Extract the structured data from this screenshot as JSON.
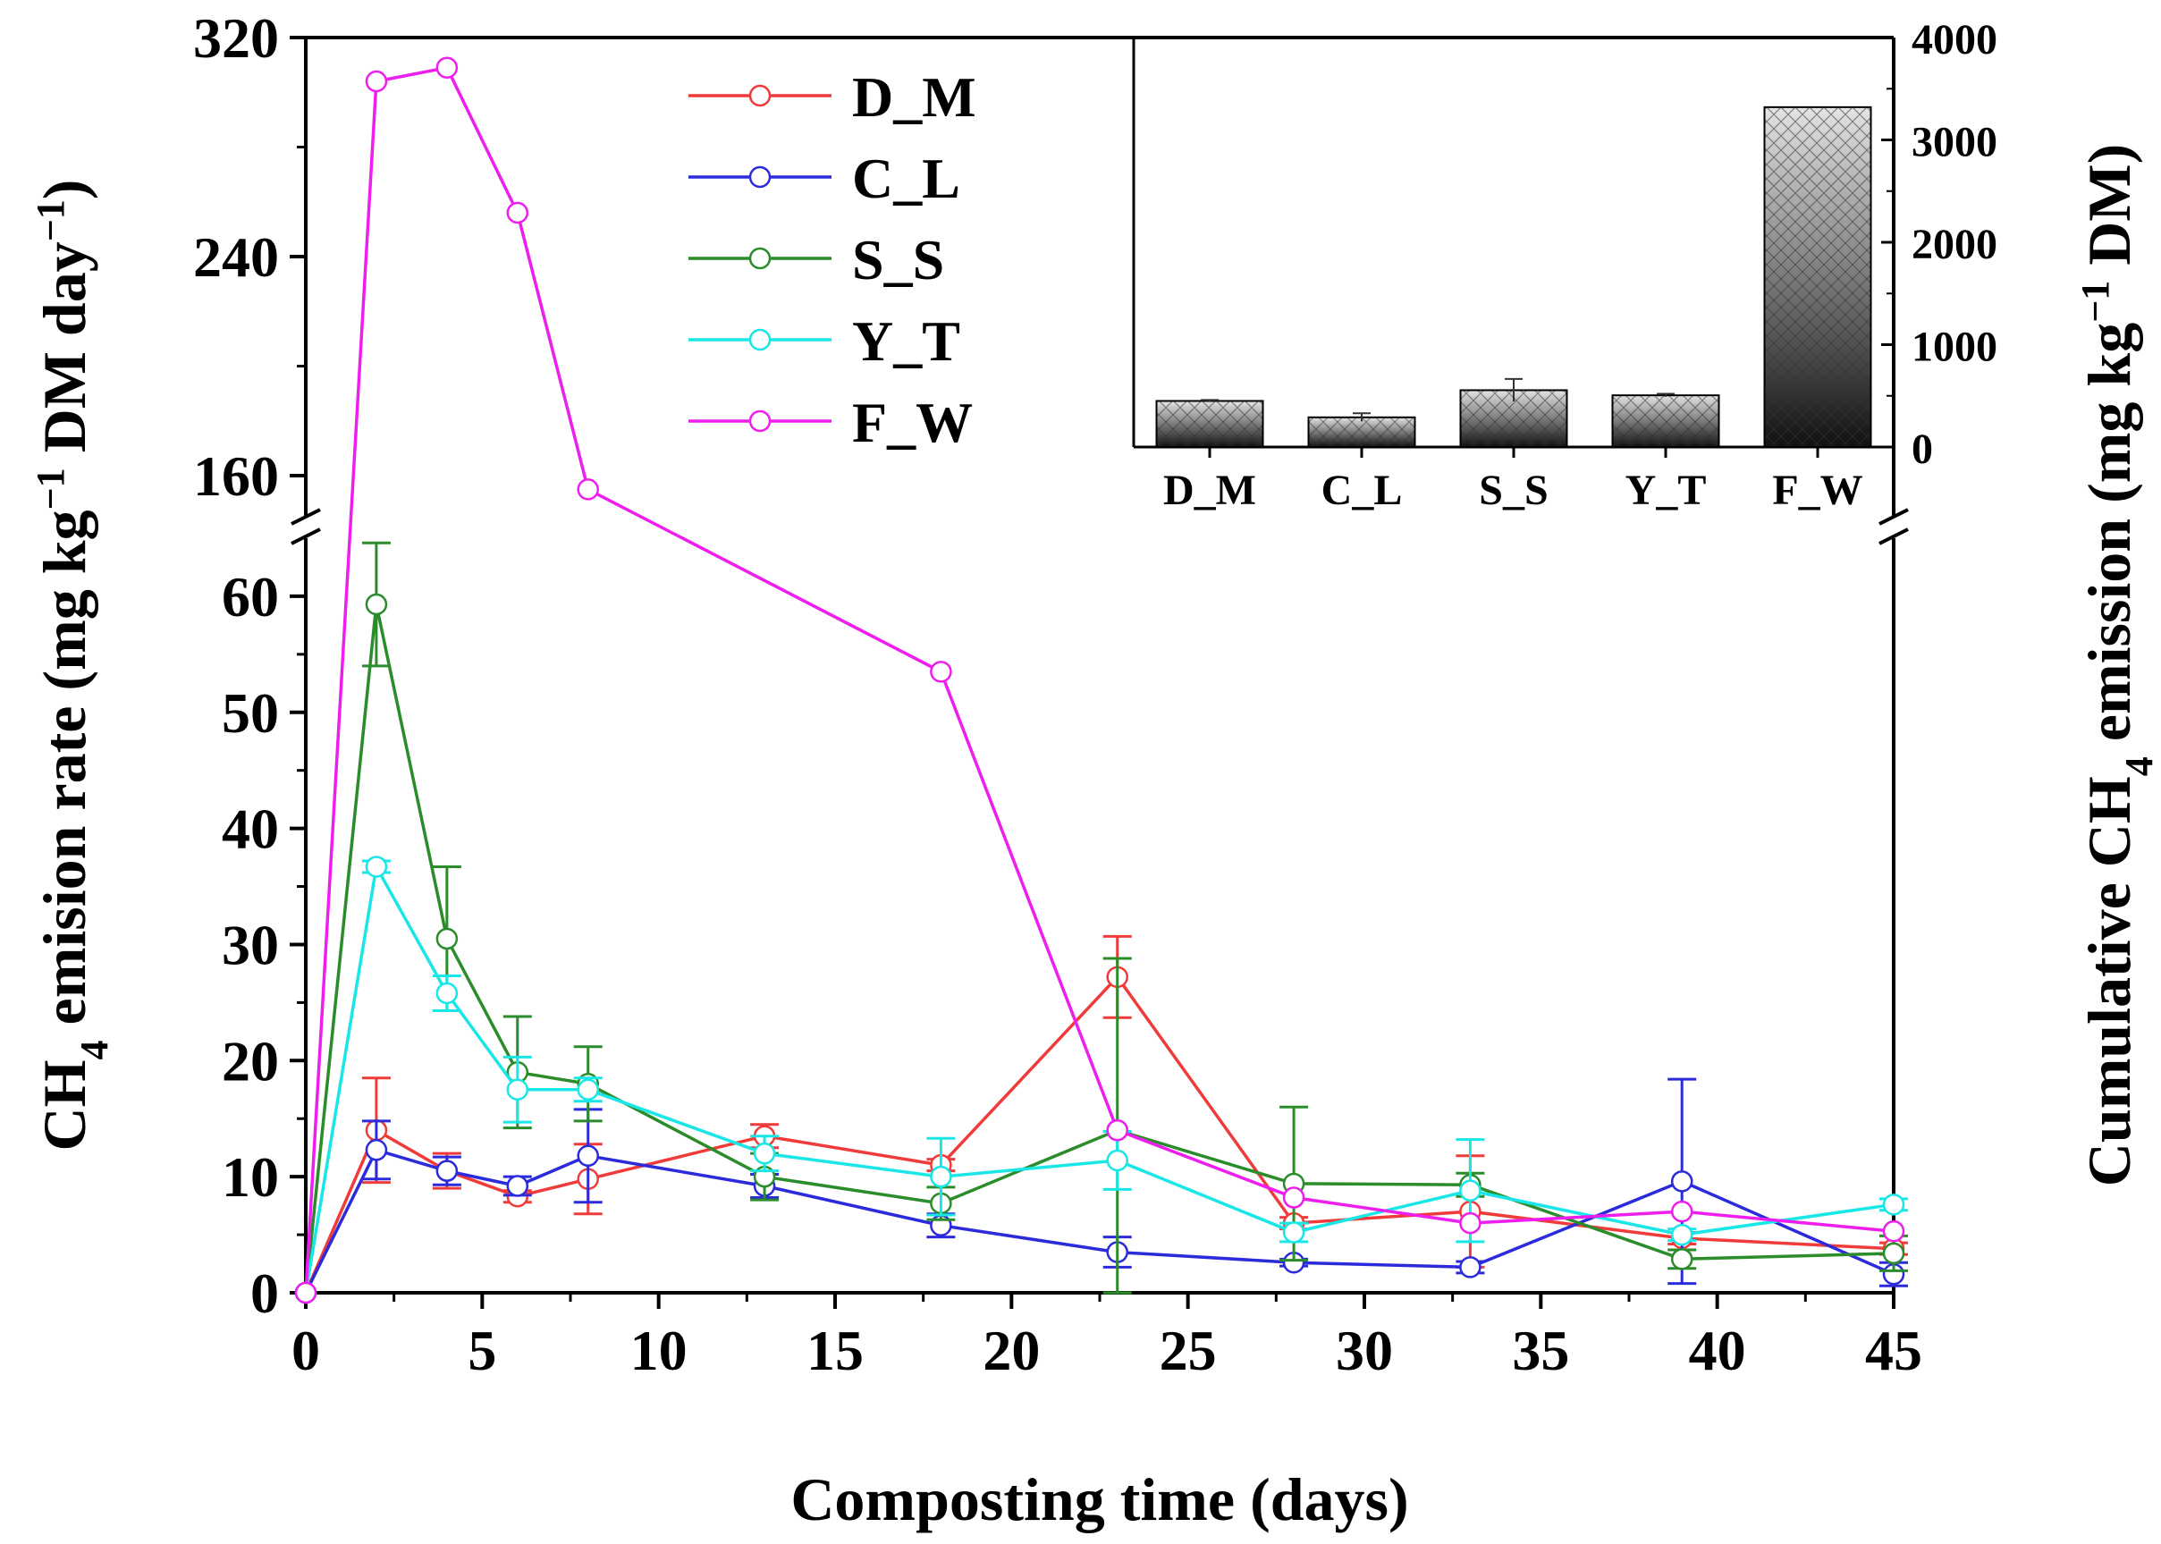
{
  "chart_data": [
    {
      "type": "line",
      "xlabel": "Composting time (days)",
      "ylabel": "CH4 emision rate (mg kg−1 DM day−1)",
      "ylabel_parts": [
        "CH",
        "4",
        " emision rate (mg kg",
        "−1",
        " DM day",
        "−1",
        ")"
      ],
      "xlim": [
        0,
        45
      ],
      "y_lower_range": [
        0,
        65
      ],
      "y_upper_range": [
        145,
        320
      ],
      "axis_break": true,
      "x_ticks": [
        "0",
        "5",
        "10",
        "15",
        "20",
        "25",
        "30",
        "35",
        "40",
        "45"
      ],
      "y_ticks_lower": [
        "0",
        "10",
        "20",
        "30",
        "40",
        "50",
        "60"
      ],
      "y_ticks_upper": [
        "160",
        "240",
        "320"
      ],
      "legend_position": "top-left",
      "x": [
        0,
        2,
        4,
        6,
        8,
        13,
        18,
        23,
        28,
        33,
        39,
        45
      ],
      "series": [
        {
          "name": "D_M",
          "color": "#ef3b39",
          "values": [
            0,
            14.0,
            10.5,
            8.3,
            9.8,
            13.5,
            11.0,
            27.2,
            6.0,
            7.0,
            4.7,
            3.8
          ],
          "errors": [
            0,
            4.5,
            1.5,
            0.5,
            3.0,
            1.0,
            0.5,
            3.5,
            0.5,
            4.8,
            0.5,
            0.5
          ]
        },
        {
          "name": "C_L",
          "color": "#2b2bdc",
          "values": [
            0,
            12.3,
            10.5,
            9.2,
            11.8,
            9.2,
            5.8,
            3.5,
            2.6,
            2.2,
            9.6,
            1.6
          ],
          "errors": [
            0,
            2.5,
            1.2,
            0.8,
            4.0,
            1.0,
            1.0,
            1.3,
            0.3,
            0.5,
            8.8,
            1.0
          ]
        },
        {
          "name": "S_S",
          "color": "#2a8c2a",
          "values": [
            0,
            59.3,
            30.5,
            19.0,
            18.0,
            10.0,
            7.7,
            14.0,
            9.4,
            9.3,
            2.9,
            3.4
          ],
          "errors": [
            0,
            5.3,
            6.2,
            4.8,
            3.2,
            2.0,
            1.4,
            14.8,
            6.6,
            1.0,
            0.8,
            1.5
          ]
        },
        {
          "name": "Y_T",
          "color": "#19e6e6",
          "values": [
            0,
            36.7,
            25.8,
            17.5,
            17.5,
            12.0,
            10.0,
            11.4,
            5.2,
            8.8,
            5.0,
            7.6
          ],
          "errors": [
            0,
            0.5,
            1.5,
            2.8,
            1.0,
            1.5,
            3.3,
            2.5,
            0.8,
            4.4,
            0.5,
            0.5
          ]
        },
        {
          "name": "F_W",
          "color": "#ee1eee",
          "values": [
            0,
            304,
            309,
            256,
            155,
            null,
            53.5,
            14.0,
            8.2,
            6.0,
            7.0,
            5.3
          ],
          "errors": [
            0,
            0,
            0,
            0,
            0,
            0,
            0,
            0,
            0,
            0,
            0,
            0
          ]
        }
      ]
    },
    {
      "type": "bar",
      "position": "inset top-right",
      "ylabel": "Cumulative CH4 emission (mg kg−1 DM)",
      "ylabel_parts": [
        "Cumulative CH",
        "4",
        " emission (mg kg",
        "−1",
        " DM)"
      ],
      "ylim": [
        0,
        4000
      ],
      "y_ticks": [
        "0",
        "1000",
        "2000",
        "3000",
        "4000"
      ],
      "categories": [
        "D_M",
        "C_L",
        "S_S",
        "Y_T",
        "F_W"
      ],
      "values": [
        450,
        290,
        555,
        505,
        3320
      ],
      "errors": [
        10,
        40,
        110,
        15,
        0
      ]
    }
  ]
}
